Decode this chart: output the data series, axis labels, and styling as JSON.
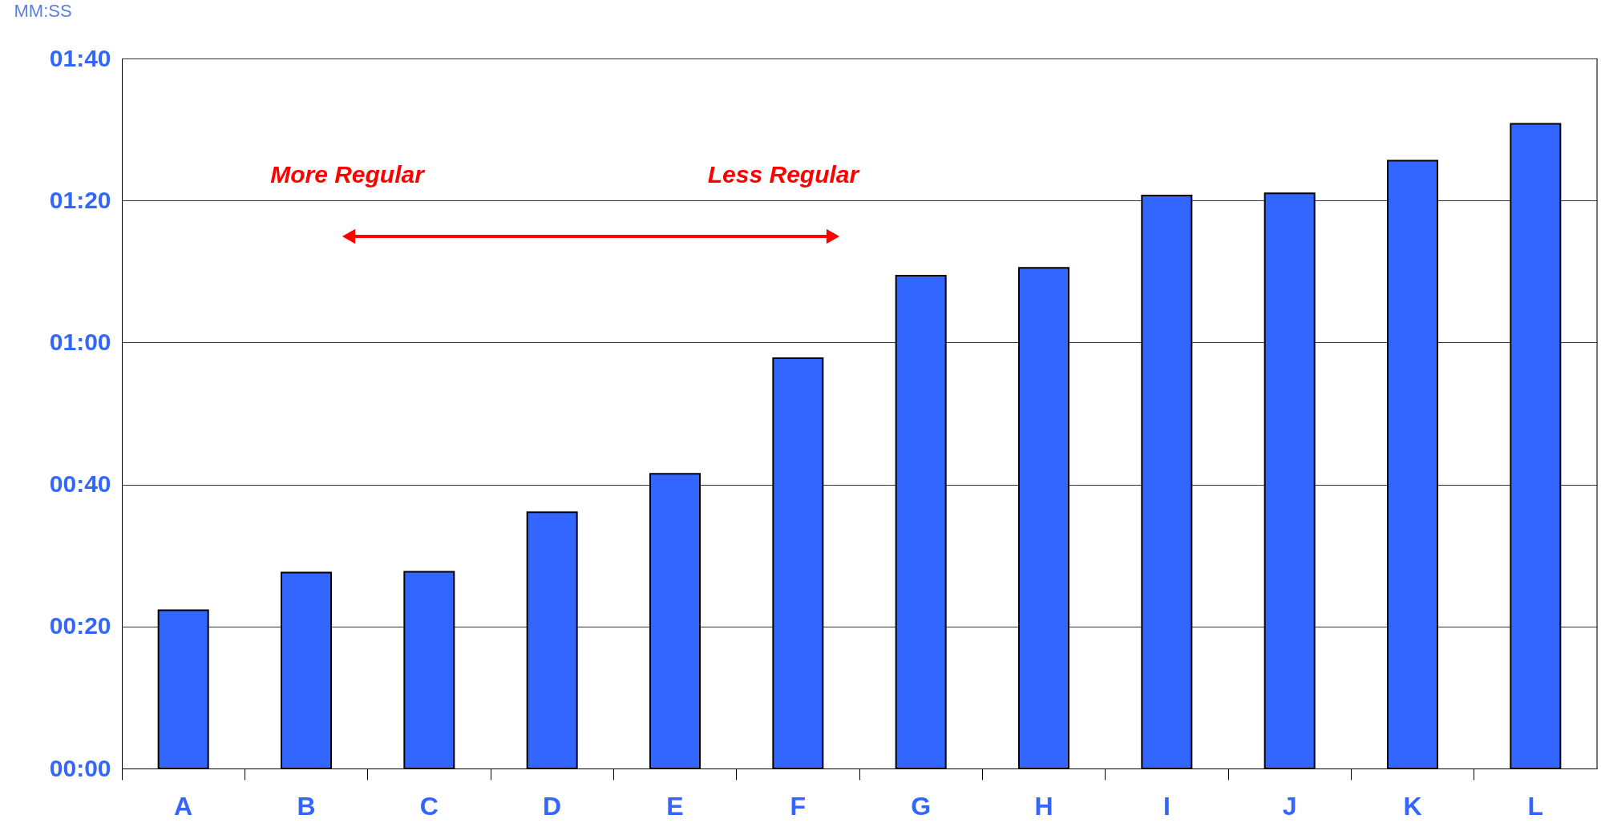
{
  "chart_data": {
    "type": "bar",
    "ylabel": "MM:SS",
    "categories": [
      "A",
      "B",
      "C",
      "D",
      "E",
      "F",
      "G",
      "H",
      "I",
      "J",
      "K",
      "L"
    ],
    "values": [
      22.3,
      27.6,
      27.7,
      36.1,
      41.5,
      57.8,
      69.4,
      70.5,
      80.7,
      81.0,
      85.6,
      90.8
    ],
    "color": "#3366ff",
    "ylim": [
      0,
      100
    ],
    "yticks": [
      {
        "value": 0,
        "label": "00:00"
      },
      {
        "value": 20,
        "label": "00:20"
      },
      {
        "value": 40,
        "label": "00:40"
      },
      {
        "value": 60,
        "label": "01:00"
      },
      {
        "value": 80,
        "label": "01:20"
      },
      {
        "value": 100,
        "label": "01:40"
      }
    ],
    "grid": "y",
    "annotations": [
      "More Regular",
      "Less Regular"
    ]
  }
}
